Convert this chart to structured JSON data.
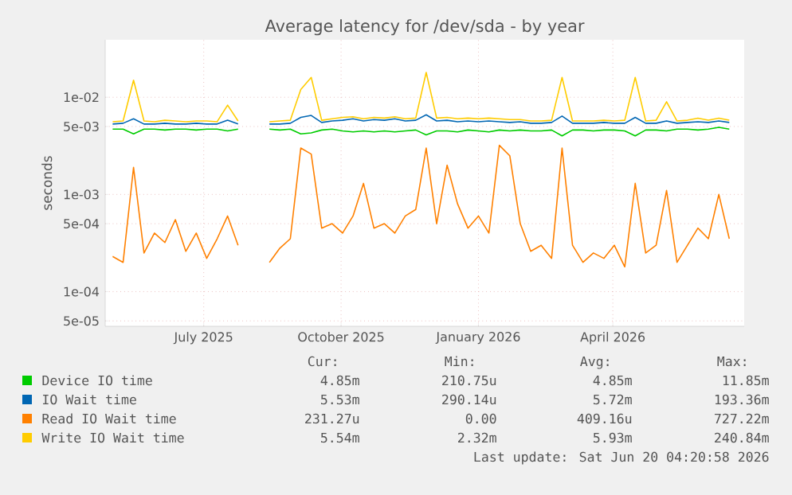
{
  "chart_data": {
    "type": "line",
    "title": "Average latency for /dev/sda - by year",
    "ylabel": "seconds",
    "x": [
      "2025-05-01",
      "2025-05-08",
      "2025-05-15",
      "2025-05-22",
      "2025-05-29",
      "2025-06-05",
      "2025-06-12",
      "2025-06-19",
      "2025-06-26",
      "2025-07-03",
      "2025-07-10",
      "2025-07-17",
      "2025-07-24",
      "2025-07-31",
      "2025-08-07",
      "2025-08-14",
      "2025-08-21",
      "2025-08-28",
      "2025-09-04",
      "2025-09-11",
      "2025-09-18",
      "2025-09-25",
      "2025-10-02",
      "2025-10-09",
      "2025-10-16",
      "2025-10-23",
      "2025-10-30",
      "2025-11-06",
      "2025-11-13",
      "2025-11-20",
      "2025-11-27",
      "2025-12-04",
      "2025-12-11",
      "2025-12-18",
      "2025-12-25",
      "2026-01-01",
      "2026-01-08",
      "2026-01-15",
      "2026-01-22",
      "2026-01-29",
      "2026-02-05",
      "2026-02-12",
      "2026-02-19",
      "2026-02-26",
      "2026-03-05",
      "2026-03-12",
      "2026-03-19",
      "2026-03-26",
      "2026-04-02",
      "2026-04-09",
      "2026-04-16",
      "2026-04-23",
      "2026-04-30",
      "2026-05-07",
      "2026-05-14",
      "2026-05-21",
      "2026-05-28",
      "2026-06-04",
      "2026-06-11",
      "2026-06-18"
    ],
    "series": [
      {
        "name": "Device IO time",
        "color": "#00cc00",
        "values": [
          0.0047,
          0.0047,
          0.0042,
          0.0047,
          0.0047,
          0.0046,
          0.0047,
          0.0047,
          0.0046,
          0.0047,
          0.0047,
          0.0045,
          0.0047,
          null,
          null,
          0.0047,
          0.0046,
          0.0047,
          0.0042,
          0.0043,
          0.0046,
          0.0047,
          0.0045,
          0.0044,
          0.0045,
          0.0044,
          0.0045,
          0.0044,
          0.0045,
          0.0046,
          0.0041,
          0.0045,
          0.0045,
          0.0044,
          0.0046,
          0.0045,
          0.0044,
          0.0046,
          0.0045,
          0.0046,
          0.0045,
          0.0045,
          0.0046,
          0.004,
          0.0046,
          0.0046,
          0.0045,
          0.0046,
          0.0046,
          0.0045,
          0.004,
          0.0046,
          0.0046,
          0.0045,
          0.0047,
          0.0047,
          0.0046,
          0.0047,
          0.0049,
          0.0047
        ]
      },
      {
        "name": "IO Wait time",
        "color": "#0066b3",
        "values": [
          0.0053,
          0.0054,
          0.006,
          0.0053,
          0.0053,
          0.0054,
          0.0053,
          0.0053,
          0.0054,
          0.0053,
          0.0053,
          0.0058,
          0.0053,
          null,
          null,
          0.0053,
          0.0053,
          0.0054,
          0.0062,
          0.0065,
          0.0055,
          0.0057,
          0.0058,
          0.006,
          0.0057,
          0.0059,
          0.0058,
          0.006,
          0.0057,
          0.0058,
          0.0066,
          0.0057,
          0.0058,
          0.0056,
          0.0057,
          0.0056,
          0.0057,
          0.0056,
          0.0055,
          0.0056,
          0.0054,
          0.0054,
          0.0055,
          0.0064,
          0.0054,
          0.0054,
          0.0054,
          0.0055,
          0.0054,
          0.0054,
          0.0062,
          0.0054,
          0.0054,
          0.0057,
          0.0054,
          0.0055,
          0.0056,
          0.0055,
          0.0057,
          0.0055
        ]
      },
      {
        "name": "Read IO Wait time",
        "color": "#ff8000",
        "values": [
          0.00023,
          0.0002,
          0.0019,
          0.00025,
          0.0004,
          0.00032,
          0.00055,
          0.00026,
          0.0004,
          0.00022,
          0.00035,
          0.0006,
          0.0003,
          null,
          null,
          0.0002,
          0.00028,
          0.00035,
          0.003,
          0.0026,
          0.00045,
          0.0005,
          0.0004,
          0.0006,
          0.0013,
          0.00045,
          0.0005,
          0.0004,
          0.0006,
          0.0007,
          0.003,
          0.0005,
          0.002,
          0.0008,
          0.00045,
          0.0006,
          0.0004,
          0.0032,
          0.0025,
          0.0005,
          0.00026,
          0.0003,
          0.00022,
          0.003,
          0.0003,
          0.0002,
          0.00025,
          0.00022,
          0.0003,
          0.00018,
          0.0013,
          0.00025,
          0.0003,
          0.0011,
          0.0002,
          0.0003,
          0.00045,
          0.00035,
          0.001,
          0.00035
        ]
      },
      {
        "name": "Write IO Wait time",
        "color": "#ffcc00",
        "values": [
          0.0056,
          0.0057,
          0.015,
          0.0057,
          0.0056,
          0.0058,
          0.0057,
          0.0056,
          0.0057,
          0.0057,
          0.0056,
          0.0083,
          0.0057,
          null,
          null,
          0.0056,
          0.0057,
          0.0058,
          0.012,
          0.016,
          0.0058,
          0.006,
          0.0062,
          0.0063,
          0.006,
          0.0062,
          0.0061,
          0.0063,
          0.006,
          0.0061,
          0.018,
          0.0061,
          0.0062,
          0.006,
          0.0061,
          0.006,
          0.0061,
          0.006,
          0.0059,
          0.0059,
          0.0057,
          0.0057,
          0.0058,
          0.016,
          0.0057,
          0.0057,
          0.0057,
          0.0058,
          0.0057,
          0.0058,
          0.016,
          0.0057,
          0.0058,
          0.009,
          0.0057,
          0.0058,
          0.0061,
          0.0058,
          0.0061,
          0.0058
        ]
      }
    ],
    "xlim": [
      "2025-04-26",
      "2026-06-28"
    ],
    "xticks": [
      {
        "value": "2025-07-01",
        "label": "July 2025"
      },
      {
        "value": "2025-10-01",
        "label": "October 2025"
      },
      {
        "value": "2026-01-01",
        "label": "January 2026"
      },
      {
        "value": "2026-04-01",
        "label": "April 2026"
      }
    ],
    "log": "y",
    "ylim": [
      4.4e-05,
      0.039
    ],
    "yticks": [
      {
        "value": 5e-05,
        "label": "5e-05"
      },
      {
        "value": 0.0001,
        "label": "1e-04"
      },
      {
        "value": 0.0005,
        "label": "5e-04"
      },
      {
        "value": 0.001,
        "label": "1e-03"
      },
      {
        "value": 0.005,
        "label": "5e-03"
      },
      {
        "value": 0.01,
        "label": "1e-02"
      }
    ],
    "grid": true,
    "legend": "bottom",
    "annotations": [
      "Cur:",
      "Min:",
      "Avg:",
      "Max:",
      "4.85m",
      "210.75u",
      "4.85m",
      "11.85m",
      "5.53m",
      "290.14u",
      "5.72m",
      "193.36m",
      "231.27u",
      "0.00",
      "409.16u",
      "727.22m",
      "5.54m",
      "2.32m",
      "5.93m",
      "240.84m",
      "Last update: Sat Jun 20 04:20:58 2026"
    ]
  }
}
